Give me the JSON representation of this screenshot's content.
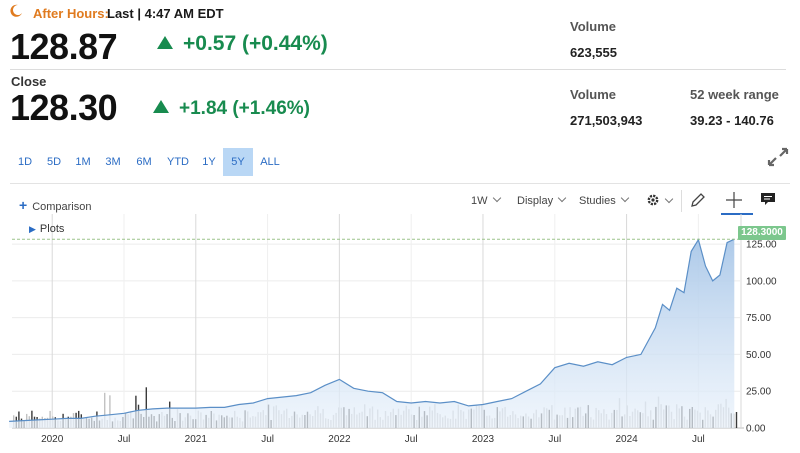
{
  "after_hours": {
    "label": "After Hours:",
    "last": "Last | 4:47 AM EDT"
  },
  "after_hours_quote": {
    "price": "128.87",
    "change": "+0.57 (+0.44%)"
  },
  "close": {
    "label": "Close",
    "price": "128.30",
    "change": "+1.84 (+1.46%)"
  },
  "stats": {
    "ah_volume_label": "Volume",
    "ah_volume_value": "623,555",
    "volume_label": "Volume",
    "volume_value": "271,503,943",
    "range_label": "52 week range",
    "range_value": "39.23 - 140.76"
  },
  "ranges": [
    "1D",
    "5D",
    "1M",
    "3M",
    "6M",
    "YTD",
    "1Y",
    "5Y",
    "ALL"
  ],
  "active_range": "5Y",
  "toolbar": {
    "comparison": "Comparison",
    "interval": "1W",
    "display": "Display",
    "studies": "Studies",
    "plots": "Plots"
  },
  "colors": {
    "accent": "#2b6cc4",
    "positive": "#188b4f",
    "after_hours": "#e07b1f",
    "line": "#5b8fc7",
    "fill": "#c9dcf0",
    "last_tag": "#7cc78d"
  },
  "icons": [
    "moon-icon",
    "up-triangle-icon",
    "expand-icon",
    "plus-icon",
    "gear-icon",
    "pencil-icon",
    "crosshair-icon",
    "comment-icon",
    "caret-right-icon"
  ],
  "chart_data": {
    "type": "area",
    "x_ticks": [
      "2020",
      "Jul",
      "2021",
      "Jul",
      "2022",
      "Jul",
      "2023",
      "Jul",
      "2024",
      "Jul"
    ],
    "y_ticks": [
      "0.00",
      "25.00",
      "50.00",
      "75.00",
      "100.00",
      "125.00"
    ],
    "ylim": [
      0,
      140
    ],
    "last_value_label": "128.3000",
    "grid": true,
    "series": [
      {
        "x": [
          2019.7,
          2019.8,
          2019.9,
          2020.0,
          2020.1,
          2020.2,
          2020.3,
          2020.4,
          2020.5,
          2020.6,
          2020.7,
          2020.8,
          2020.9,
          2021.0,
          2021.1,
          2021.2,
          2021.3,
          2021.4,
          2021.5,
          2021.6,
          2021.7,
          2021.8,
          2021.9,
          2022.0,
          2022.1,
          2022.2,
          2022.3,
          2022.4,
          2022.5,
          2022.6,
          2022.7,
          2022.8,
          2022.9,
          2023.0,
          2023.1,
          2023.2,
          2023.3,
          2023.4,
          2023.5,
          2023.6,
          2023.7,
          2023.8,
          2023.9,
          2024.0,
          2024.1,
          2024.2,
          2024.25,
          2024.3,
          2024.35,
          2024.4,
          2024.45,
          2024.5,
          2024.55,
          2024.6,
          2024.65,
          2024.7,
          2024.75
        ],
        "y": [
          4.5,
          5,
          5.5,
          6,
          6.5,
          6.5,
          8,
          9,
          10,
          12,
          13,
          13.5,
          13.5,
          13.5,
          14,
          14,
          16,
          17,
          20,
          21,
          22,
          24,
          29,
          33,
          27,
          25,
          24,
          18,
          17,
          18,
          17,
          18,
          15,
          16,
          18,
          20,
          25,
          30,
          41,
          44,
          42,
          45,
          43,
          48,
          50,
          68,
          84,
          80,
          95,
          92,
          120,
          128,
          110,
          100,
          104,
          126,
          128.3
        ]
      }
    ]
  }
}
